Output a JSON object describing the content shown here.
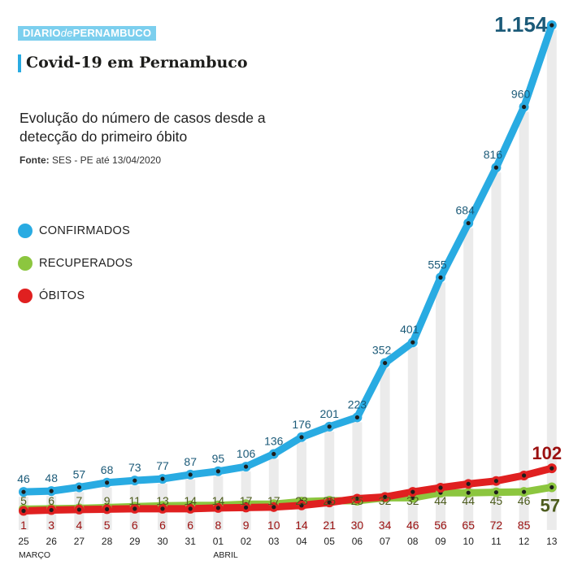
{
  "brand": {
    "part1": "DIARIO",
    "part2": "de",
    "part3": "PERNAMBUCO"
  },
  "header": {
    "title": "Covid-19 em Pernambuco",
    "subtitle": "Evolução do número de casos desde a detecção do primeiro óbito",
    "source_label": "Fonte:",
    "source_text": " SES - PE até 13/04/2020"
  },
  "legend": [
    {
      "label": "CONFIRMADOS",
      "color": "#29abe2"
    },
    {
      "label": "RECUPERADOS",
      "color": "#8cc63f"
    },
    {
      "label": "ÓBITOS",
      "color": "#e02020"
    }
  ],
  "chart_data": {
    "type": "line",
    "categories": [
      "25",
      "26",
      "27",
      "28",
      "29",
      "30",
      "31",
      "01",
      "02",
      "03",
      "04",
      "05",
      "06",
      "07",
      "08",
      "09",
      "10",
      "11",
      "12",
      "13"
    ],
    "month_labels": [
      {
        "label": "MARÇO",
        "index": 0
      },
      {
        "label": "ABRIL",
        "index": 7
      }
    ],
    "value_labels": {
      "confirmados": [
        "46",
        "48",
        "57",
        "68",
        "73",
        "77",
        "87",
        "95",
        "106",
        "136",
        "176",
        "201",
        "223",
        "352",
        "401",
        "555",
        "684",
        "816",
        "960",
        "1.154"
      ],
      "recuperados": [
        "5",
        "6",
        "7",
        "9",
        "11",
        "13",
        "14",
        "14",
        "17",
        "17",
        "23",
        "25",
        "25",
        "32",
        "32",
        "44",
        "44",
        "45",
        "46",
        "57"
      ],
      "obitos": [
        "1",
        "3",
        "4",
        "5",
        "6",
        "6",
        "6",
        "8",
        "9",
        "10",
        "14",
        "21",
        "30",
        "34",
        "46",
        "56",
        "65",
        "72",
        "85",
        "102"
      ]
    },
    "series": [
      {
        "name": "CONFIRMADOS",
        "key": "confirmados",
        "color": "#29abe2",
        "label_color": "#1b5a78",
        "values": [
          46,
          48,
          57,
          68,
          73,
          77,
          87,
          95,
          106,
          136,
          176,
          201,
          223,
          352,
          401,
          555,
          684,
          816,
          960,
          1154
        ]
      },
      {
        "name": "RECUPERADOS",
        "key": "recuperados",
        "color": "#8cc63f",
        "label_color": "#4d5c1e",
        "values": [
          5,
          6,
          7,
          9,
          11,
          13,
          14,
          14,
          17,
          17,
          23,
          25,
          25,
          32,
          32,
          44,
          44,
          45,
          46,
          57
        ]
      },
      {
        "name": "ÓBITOS",
        "key": "obitos",
        "color": "#e02020",
        "label_color": "#9b1010",
        "values": [
          1,
          3,
          4,
          5,
          6,
          6,
          6,
          8,
          9,
          10,
          14,
          21,
          30,
          34,
          46,
          56,
          65,
          72,
          85,
          102
        ]
      }
    ],
    "ylim": [
      0,
      1154
    ],
    "grid": false,
    "legend_position": "left"
  }
}
